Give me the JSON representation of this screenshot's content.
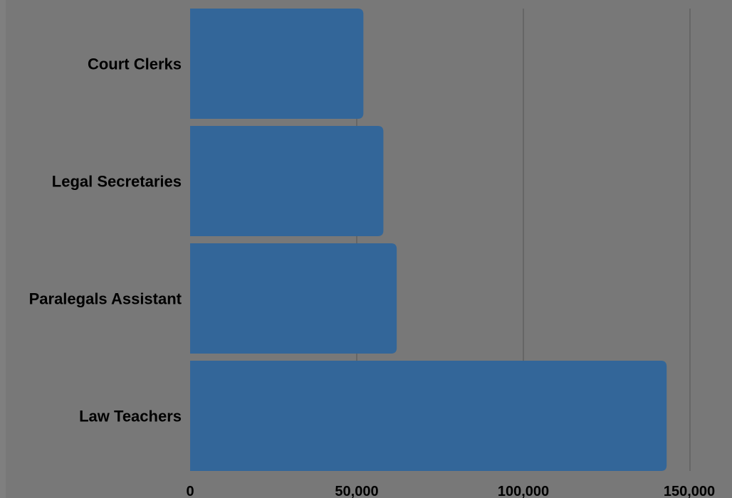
{
  "chart_data": {
    "type": "bar",
    "orientation": "horizontal",
    "categories": [
      "Court Clerks",
      "Legal Secretaries",
      "Paralegals Assistant",
      "Law Teachers"
    ],
    "values": [
      52000,
      58000,
      62000,
      143000
    ],
    "xlim": [
      0,
      150000
    ],
    "x_ticks": [
      0,
      50000,
      100000,
      150000
    ],
    "x_tick_labels": [
      "0",
      "50,000",
      "100,000",
      "150,000"
    ],
    "title": "",
    "xlabel": "",
    "ylabel": "",
    "grid": "vertical",
    "legend": "none",
    "colors": {
      "bar": "#336699",
      "background": "#787878",
      "page": "#7f7f7f",
      "grid": "#555555"
    }
  }
}
